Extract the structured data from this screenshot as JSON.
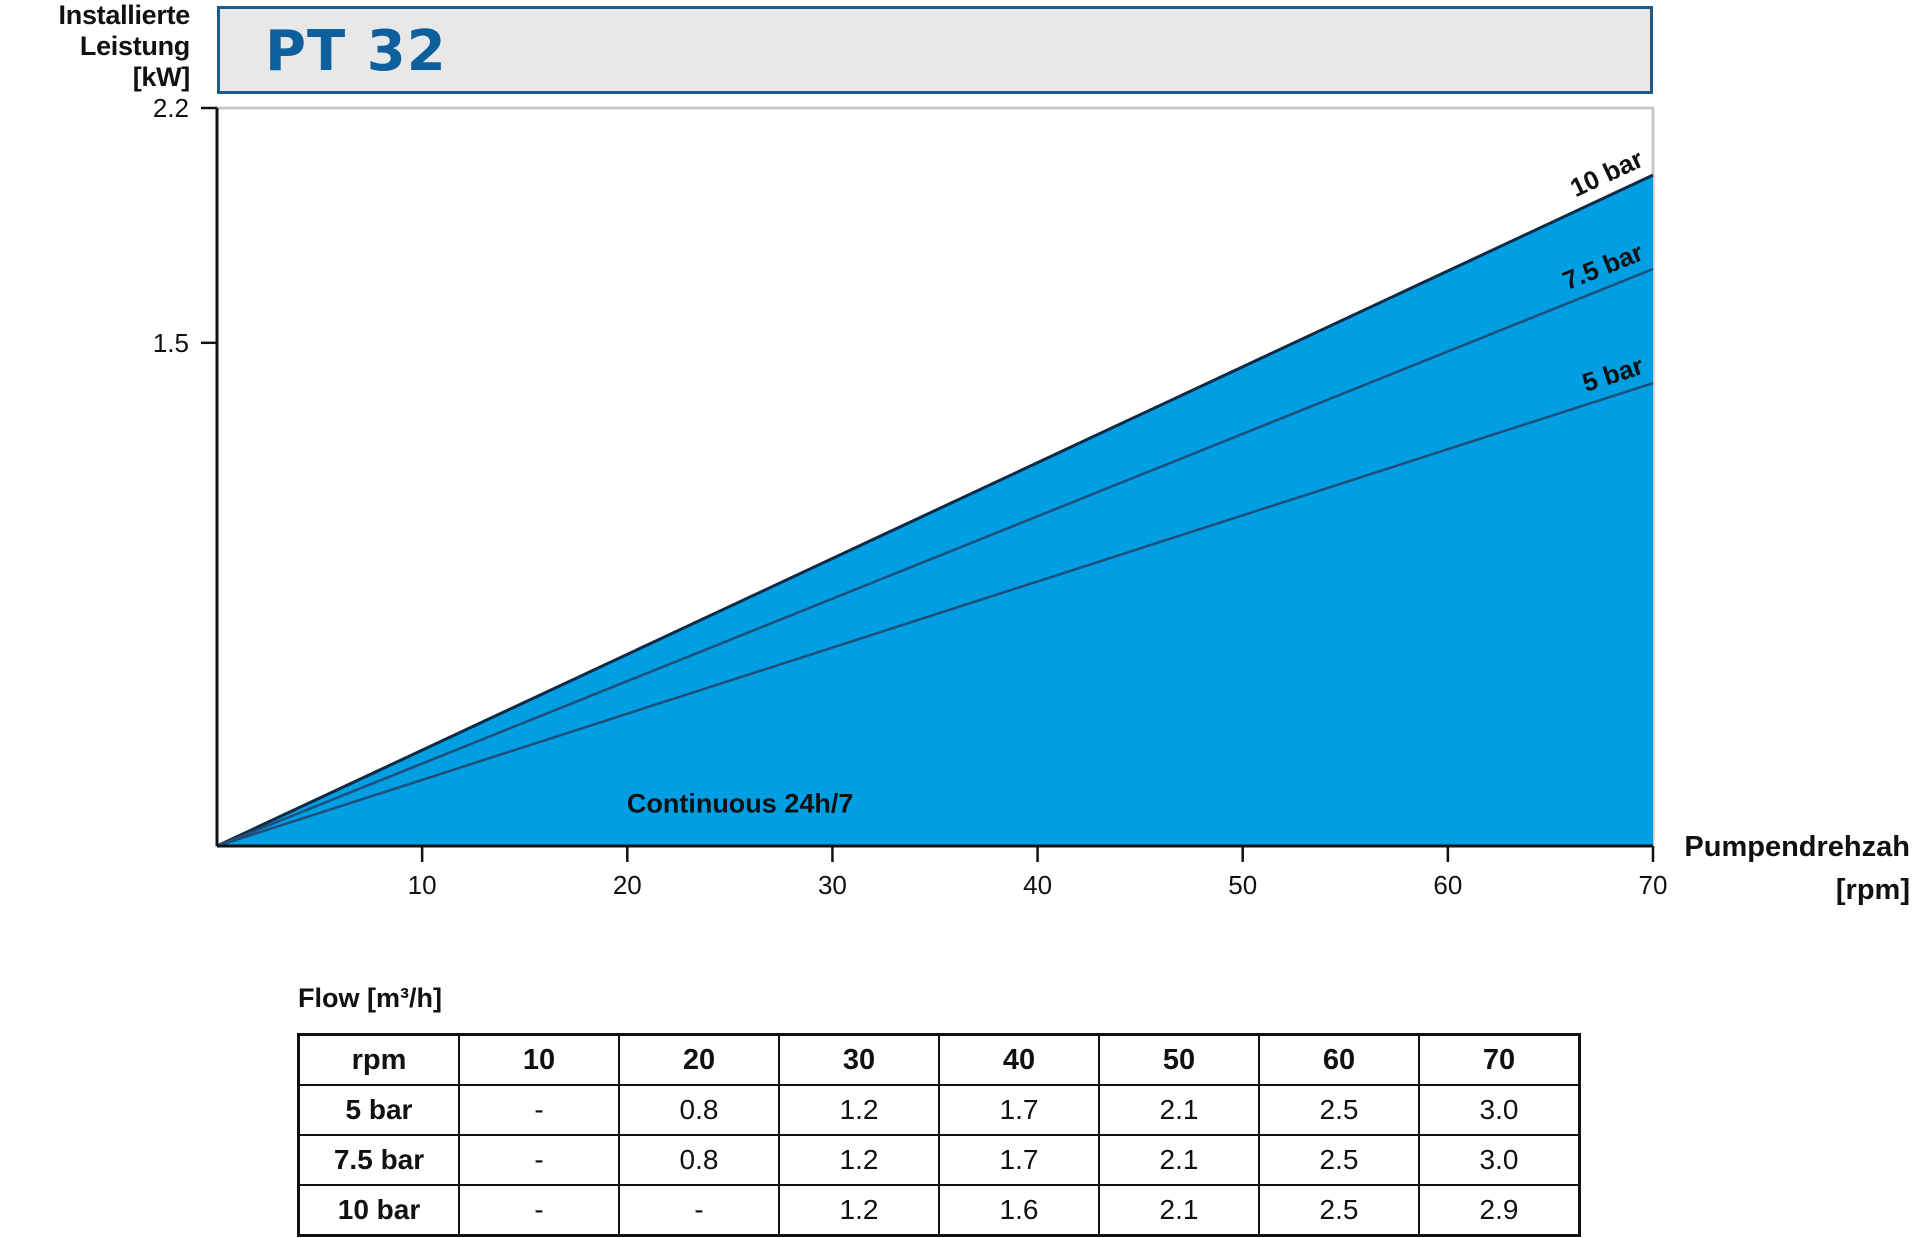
{
  "header": {
    "title": "PT 32"
  },
  "y_axis_title": [
    "Installierte",
    "Leistung",
    "[kW]"
  ],
  "x_axis_title": [
    "Pumpendrehzah",
    "[rpm]"
  ],
  "chart_data": {
    "type": "area",
    "title": "PT 32",
    "xlabel": "Pumpendrehzah [rpm]",
    "ylabel": "Installierte Leistung [kW]",
    "xlim": [
      0,
      70
    ],
    "ylim": [
      0,
      2.2
    ],
    "x_ticks": [
      10,
      20,
      30,
      40,
      50,
      60,
      70
    ],
    "y_ticks": [
      1.5,
      2.2
    ],
    "grid": false,
    "fill_color": "#009fe3",
    "line_color": "#1f4e7a",
    "annotation": "Continuous 24h/7",
    "series": [
      {
        "name": "10 bar",
        "x": [
          0,
          70
        ],
        "y": [
          0,
          2.0
        ]
      },
      {
        "name": "7.5 bar",
        "x": [
          0,
          70
        ],
        "y": [
          0,
          1.72
        ]
      },
      {
        "name": "5 bar",
        "x": [
          0,
          70
        ],
        "y": [
          0,
          1.38
        ]
      }
    ]
  },
  "flow_table": {
    "caption": "Flow [m³/h]",
    "header": [
      "rpm",
      "10",
      "20",
      "30",
      "40",
      "50",
      "60",
      "70"
    ],
    "rows": [
      [
        "5 bar",
        "-",
        "0.8",
        "1.2",
        "1.7",
        "2.1",
        "2.5",
        "3.0"
      ],
      [
        "7.5 bar",
        "-",
        "0.8",
        "1.2",
        "1.7",
        "2.1",
        "2.5",
        "3.0"
      ],
      [
        "10 bar",
        "-",
        "-",
        "1.2",
        "1.6",
        "2.1",
        "2.5",
        "2.9"
      ]
    ]
  }
}
